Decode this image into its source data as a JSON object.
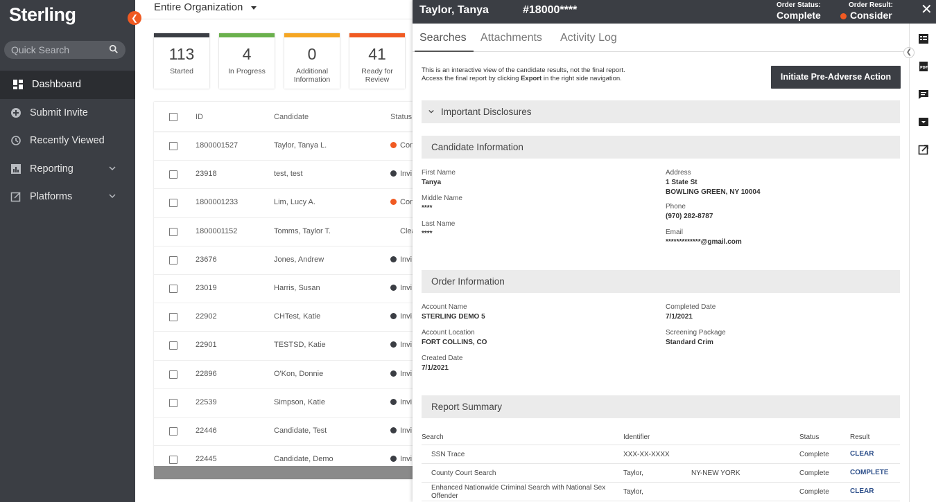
{
  "sidebar": {
    "logo": "Sterling",
    "collapse_icon": "chevron-left",
    "search_placeholder": "Quick Search",
    "items": [
      {
        "label": "Dashboard",
        "icon": "dashboard-grid",
        "active": true
      },
      {
        "label": "Submit Invite",
        "icon": "plus-circle"
      },
      {
        "label": "Recently Viewed",
        "icon": "history"
      },
      {
        "label": "Reporting",
        "icon": "bar-chart",
        "has_chevron": true
      },
      {
        "label": "Platforms",
        "icon": "external-link",
        "has_chevron": true
      }
    ]
  },
  "main": {
    "org_selector": "Entire Organization",
    "cards": [
      {
        "value": "113",
        "label": "Started",
        "color": "#3b3e44"
      },
      {
        "value": "4",
        "label": "In Progress",
        "color": "#6ab04c"
      },
      {
        "value": "0",
        "label": "Additional Information",
        "color": "#f5a623"
      },
      {
        "value": "41",
        "label": "Ready for Review",
        "color": "#f05a22"
      }
    ],
    "table": {
      "headers": {
        "id": "ID",
        "candidate": "Candidate",
        "status": "Status"
      },
      "rows": [
        {
          "id": "1800001527",
          "candidate": "Taylor, Tanya L.",
          "status": "Con",
          "dot": "#f05a22"
        },
        {
          "id": "23918",
          "candidate": "test, test",
          "status": "Invi",
          "dot": "#3b3e44"
        },
        {
          "id": "1800001233",
          "candidate": "Lim, Lucy A.",
          "status": "Con",
          "dot": "#f05a22"
        },
        {
          "id": "1800001152",
          "candidate": "Tomms, Taylor T.",
          "status": "Clea",
          "dot": ""
        },
        {
          "id": "23676",
          "candidate": "Jones, Andrew",
          "status": "Invi",
          "dot": "#3b3e44"
        },
        {
          "id": "23019",
          "candidate": "Harris, Susan",
          "status": "Invi",
          "dot": "#3b3e44"
        },
        {
          "id": "22902",
          "candidate": "CHTest, Katie",
          "status": "Invi",
          "dot": "#3b3e44"
        },
        {
          "id": "22901",
          "candidate": "TESTSD, Katie",
          "status": "Invi",
          "dot": "#3b3e44"
        },
        {
          "id": "22896",
          "candidate": "O'Kon, Donnie",
          "status": "Invi",
          "dot": "#3b3e44"
        },
        {
          "id": "22539",
          "candidate": "Simpson, Katie",
          "status": "Invi",
          "dot": "#3b3e44"
        },
        {
          "id": "22446",
          "candidate": "Candidate, Test",
          "status": "Invi",
          "dot": "#3b3e44"
        },
        {
          "id": "22445",
          "candidate": "Candidate, Demo",
          "status": "Invi",
          "dot": "#3b3e44"
        }
      ]
    }
  },
  "panel": {
    "name": "Taylor, Tanya",
    "order_id": "#18000****",
    "order_status_label": "Order Status:",
    "order_status": "Complete",
    "order_result_label": "Order Result:",
    "order_result": "Consider",
    "close_icon": "close",
    "tabs": [
      "Searches",
      "Attachments",
      "Activity Log"
    ],
    "note_line1": "This is an interactive view of the candidate results, not the final report.",
    "note_line2_pre": "Access the final report by clicking ",
    "note_line2_bold": "Export",
    "note_line2_post": " in the right side navigation.",
    "pre_adverse_button": "Initiate Pre-Adverse Action",
    "disclosures_title": "Important Disclosures",
    "candidate_section": "Candidate Information",
    "candidate": {
      "first_name_label": "First Name",
      "first_name": "Tanya",
      "middle_name_label": "Middle Name",
      "middle_name": "****",
      "last_name_label": "Last Name",
      "last_name": "****",
      "address_label": "Address",
      "address_line1": "1 State St",
      "address_line2": "BOWLING GREEN, NY 10004",
      "phone_label": "Phone",
      "phone": "(970) 282-8787",
      "email_label": "Email",
      "email": "*************@gmail.com"
    },
    "order_section": "Order Information",
    "order": {
      "account_name_label": "Account Name",
      "account_name": "STERLING DEMO 5",
      "account_location_label": "Account Location",
      "account_location": "FORT COLLINS, CO",
      "created_date_label": "Created Date",
      "created_date": "7/1/2021",
      "completed_date_label": "Completed Date",
      "completed_date": "7/1/2021",
      "package_label": "Screening Package",
      "package": "Standard Crim"
    },
    "report_section": "Report Summary",
    "report_headers": {
      "search": "Search",
      "identifier": "Identifier",
      "status": "Status",
      "result": "Result"
    },
    "report_rows": [
      {
        "search": "SSN Trace",
        "identifier": "XXX-XX-XXXX",
        "extra": "",
        "status": "Complete",
        "result": "CLEAR"
      },
      {
        "search": "County Court Search",
        "identifier": "Taylor,",
        "extra": "NY-NEW YORK",
        "status": "Complete",
        "result": "COMPLETE"
      },
      {
        "search": "Enhanced Nationwide Criminal Search with National Sex Offender",
        "identifier": "Taylor,",
        "extra": "",
        "status": "Complete",
        "result": "CLEAR"
      }
    ],
    "rail_icons": [
      "report-icon",
      "pdf-icon",
      "comment-icon",
      "archive-icon",
      "open-external-icon"
    ]
  }
}
